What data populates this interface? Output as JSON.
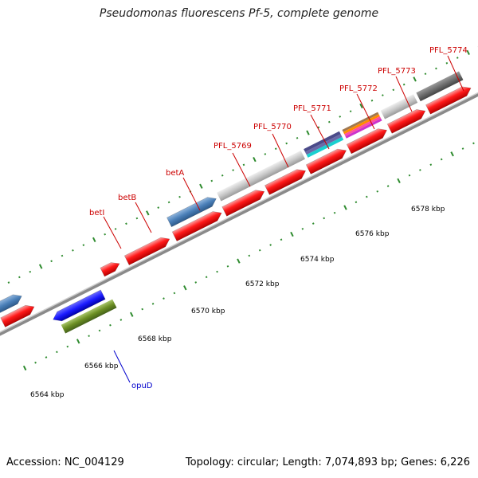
{
  "title": "Pseudomonas fluorescens Pf-5, complete genome",
  "footer": {
    "accession": "Accession: NC_004129",
    "stats": "Topology: circular; Length: 7,074,893 bp; Genes: 6,226"
  },
  "colors": {
    "cds": "#ff1a1a",
    "pfl_5770": "#c8c8c8",
    "pfl_5773": "#c8c8c8",
    "pfl_5774": "#6e6e6e",
    "betB": "#4a7fb8",
    "opuD_upper": "#1a1aff",
    "opuD_lower": "#6b8e23",
    "backbone": "#8a8a8a",
    "ticks": "#2e8b2e",
    "gene_label": "#cc0000",
    "opuD_label": "#0000cc"
  },
  "scale_labels": [
    "6564 kbp",
    "6566 kbp",
    "6568 kbp",
    "6570 kbp",
    "6572 kbp",
    "6574 kbp",
    "6576 kbp",
    "6578 kbp"
  ],
  "gene_labels": [
    "betI",
    "betB",
    "betA",
    "PFL_5769",
    "PFL_5770",
    "PFL_5771",
    "PFL_5772",
    "PFL_5773",
    "PFL_5774"
  ],
  "lower_label": "opuD"
}
